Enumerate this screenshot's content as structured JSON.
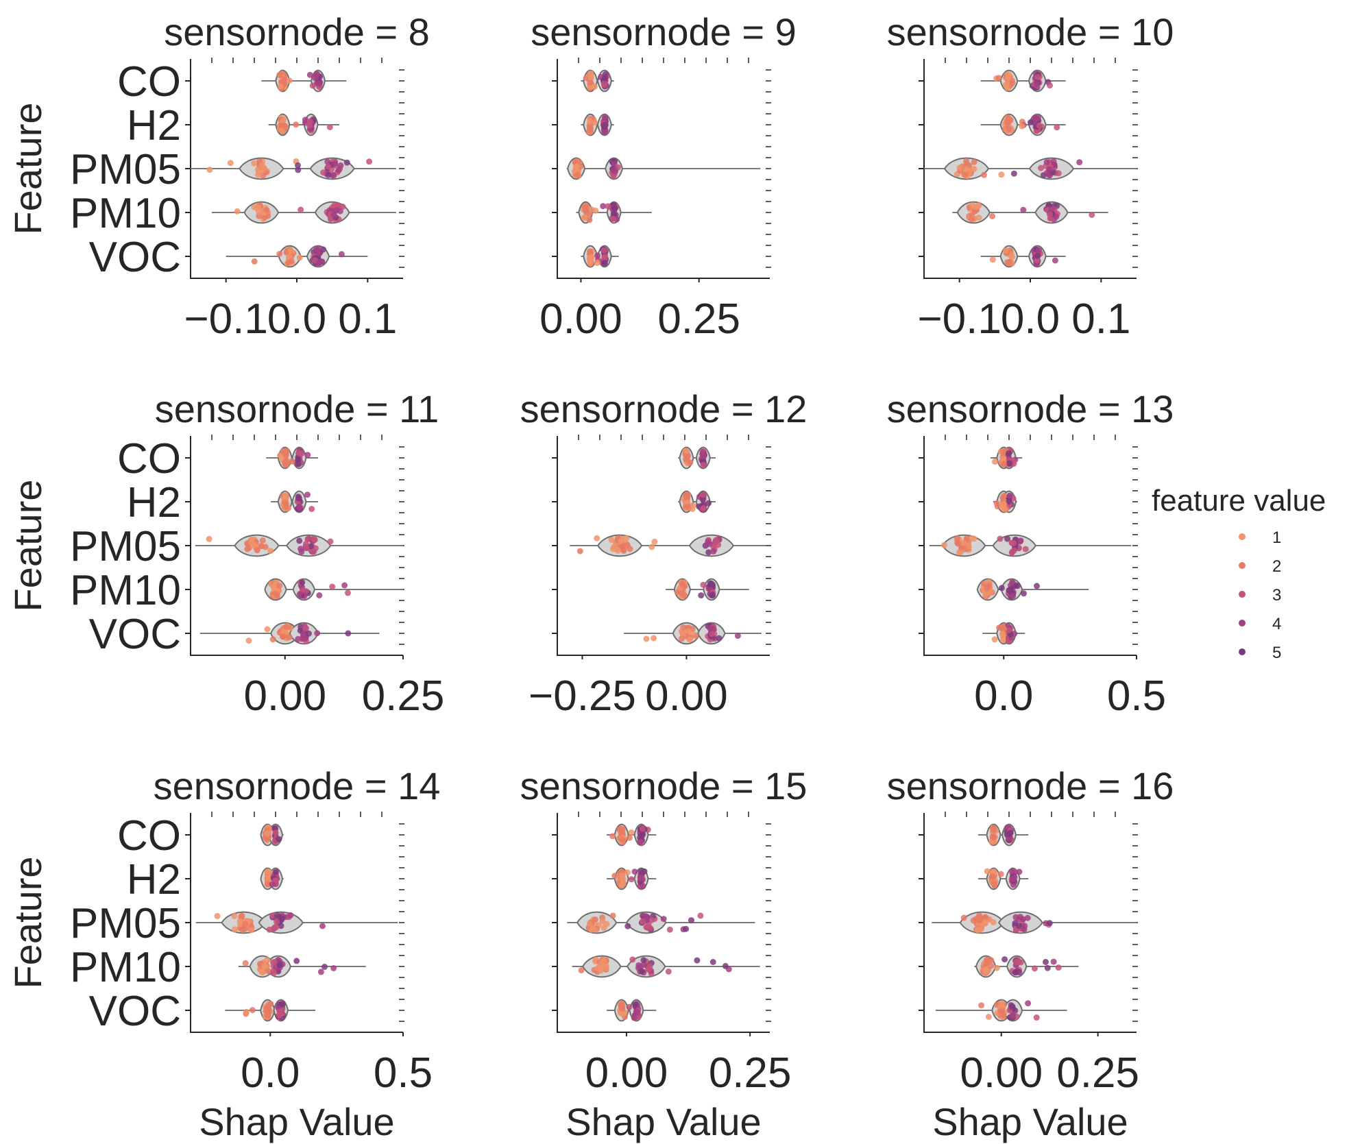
{
  "chart_data": {
    "type": "violin-strip",
    "facet_variable": "sensornode",
    "ylabel": "Feature",
    "xlabel": "Shap Value",
    "categories": [
      "CO",
      "H2",
      "PM05",
      "PM10",
      "VOC"
    ],
    "legend": {
      "title": "feature value",
      "placement": "right",
      "entries": [
        {
          "label": "1",
          "color": "#f0936a"
        },
        {
          "label": "2",
          "color": "#e67a64"
        },
        {
          "label": "3",
          "color": "#c4527a"
        },
        {
          "label": "4",
          "color": "#a43f83"
        },
        {
          "label": "5",
          "color": "#7c3a7c"
        }
      ]
    },
    "panels": [
      {
        "title": "sensornode = 8",
        "xlim": [
          -0.15,
          0.15
        ],
        "xticks": [
          {
            "v": -0.1,
            "t": "−0.1"
          },
          {
            "v": 0.0,
            "t": "0.0"
          },
          {
            "v": 0.1,
            "t": "0.1"
          }
        ],
        "features": [
          {
            "name": "CO",
            "lo": -0.05,
            "hi": 0.07,
            "bulk": [
              -0.03,
              0.05
            ],
            "modes": [
              -0.02,
              0.03
            ]
          },
          {
            "name": "H2",
            "lo": -0.04,
            "hi": 0.06,
            "bulk": [
              -0.03,
              0.05
            ],
            "modes": [
              -0.02,
              0.02
            ]
          },
          {
            "name": "PM05",
            "lo": -0.15,
            "hi": 0.14,
            "bulk": [
              -0.14,
              0.12
            ],
            "modes": [
              -0.05,
              0.05
            ]
          },
          {
            "name": "PM10",
            "lo": -0.12,
            "hi": 0.14,
            "bulk": [
              -0.1,
              0.1
            ],
            "modes": [
              -0.05,
              0.05
            ]
          },
          {
            "name": "VOC",
            "lo": -0.1,
            "hi": 0.1,
            "bulk": [
              -0.06,
              0.07
            ],
            "modes": [
              -0.01,
              0.03
            ]
          }
        ]
      },
      {
        "title": "sensornode = 9",
        "xlim": [
          -0.05,
          0.4
        ],
        "xticks": [
          {
            "v": 0.0,
            "t": "0.00"
          },
          {
            "v": 0.25,
            "t": "0.25"
          }
        ],
        "features": [
          {
            "name": "CO",
            "lo": 0.0,
            "hi": 0.07,
            "bulk": [
              0.01,
              0.06
            ],
            "modes": [
              0.02,
              0.05
            ]
          },
          {
            "name": "H2",
            "lo": 0.0,
            "hi": 0.07,
            "bulk": [
              0.01,
              0.06
            ],
            "modes": [
              0.02,
              0.05
            ]
          },
          {
            "name": "PM05",
            "lo": -0.03,
            "hi": 0.38,
            "bulk": [
              -0.03,
              0.12
            ],
            "modes": [
              -0.01,
              0.07
            ]
          },
          {
            "name": "PM10",
            "lo": -0.01,
            "hi": 0.15,
            "bulk": [
              0.0,
              0.11
            ],
            "modes": [
              0.01,
              0.07
            ]
          },
          {
            "name": "VOC",
            "lo": 0.0,
            "hi": 0.08,
            "bulk": [
              0.01,
              0.07
            ],
            "modes": [
              0.02,
              0.05
            ]
          }
        ]
      },
      {
        "title": "sensornode = 10",
        "xlim": [
          -0.15,
          0.15
        ],
        "xticks": [
          {
            "v": -0.1,
            "t": "−0.1"
          },
          {
            "v": 0.0,
            "t": "0.0"
          },
          {
            "v": 0.1,
            "t": "0.1"
          }
        ],
        "features": [
          {
            "name": "CO",
            "lo": -0.07,
            "hi": 0.05,
            "bulk": [
              -0.06,
              0.04
            ],
            "modes": [
              -0.03,
              0.01
            ]
          },
          {
            "name": "H2",
            "lo": -0.07,
            "hi": 0.05,
            "bulk": [
              -0.06,
              0.04
            ],
            "modes": [
              -0.03,
              0.01
            ]
          },
          {
            "name": "PM05",
            "lo": -0.15,
            "hi": 0.15,
            "bulk": [
              -0.14,
              0.12
            ],
            "modes": [
              -0.09,
              0.03
            ]
          },
          {
            "name": "PM10",
            "lo": -0.11,
            "hi": 0.11,
            "bulk": [
              -0.1,
              0.09
            ],
            "modes": [
              -0.08,
              0.03
            ]
          },
          {
            "name": "VOC",
            "lo": -0.07,
            "hi": 0.05,
            "bulk": [
              -0.06,
              0.04
            ],
            "modes": [
              -0.03,
              0.01
            ]
          }
        ]
      },
      {
        "title": "sensornode = 11",
        "xlim": [
          -0.2,
          0.25
        ],
        "xticks": [
          {
            "v": 0.0,
            "t": "0.00"
          },
          {
            "v": 0.25,
            "t": "0.25"
          }
        ],
        "features": [
          {
            "name": "CO",
            "lo": -0.04,
            "hi": 0.07,
            "bulk": [
              -0.03,
              0.06
            ],
            "modes": [
              0.0,
              0.03
            ]
          },
          {
            "name": "H2",
            "lo": -0.03,
            "hi": 0.07,
            "bulk": [
              -0.02,
              0.06
            ],
            "modes": [
              0.0,
              0.03
            ]
          },
          {
            "name": "PM05",
            "lo": -0.19,
            "hi": 0.25,
            "bulk": [
              -0.19,
              0.2
            ],
            "modes": [
              -0.06,
              0.05
            ]
          },
          {
            "name": "PM10",
            "lo": -0.04,
            "hi": 0.25,
            "bulk": [
              -0.03,
              0.16
            ],
            "modes": [
              -0.02,
              0.04
            ]
          },
          {
            "name": "VOC",
            "lo": -0.18,
            "hi": 0.2,
            "bulk": [
              -0.1,
              0.15
            ],
            "modes": [
              0.0,
              0.04
            ]
          }
        ]
      },
      {
        "title": "sensornode = 12",
        "xlim": [
          -0.31,
          0.2
        ],
        "xticks": [
          {
            "v": -0.25,
            "t": "−0.25"
          },
          {
            "v": 0.0,
            "t": "0.00"
          }
        ],
        "features": [
          {
            "name": "CO",
            "lo": -0.02,
            "hi": 0.07,
            "bulk": [
              -0.01,
              0.06
            ],
            "modes": [
              0.0,
              0.04
            ]
          },
          {
            "name": "H2",
            "lo": -0.02,
            "hi": 0.07,
            "bulk": [
              -0.01,
              0.06
            ],
            "modes": [
              0.0,
              0.04
            ]
          },
          {
            "name": "PM05",
            "lo": -0.28,
            "hi": 0.19,
            "bulk": [
              -0.27,
              0.18
            ],
            "modes": [
              -0.16,
              0.06
            ]
          },
          {
            "name": "PM10",
            "lo": -0.05,
            "hi": 0.15,
            "bulk": [
              -0.04,
              0.12
            ],
            "modes": [
              -0.01,
              0.06
            ]
          },
          {
            "name": "VOC",
            "lo": -0.15,
            "hi": 0.18,
            "bulk": [
              -0.12,
              0.15
            ],
            "modes": [
              0.0,
              0.06
            ]
          }
        ]
      },
      {
        "title": "sensornode = 13",
        "xlim": [
          -0.3,
          0.5
        ],
        "xticks": [
          {
            "v": 0.0,
            "t": "0.0"
          },
          {
            "v": 0.5,
            "t": "0.5"
          }
        ],
        "features": [
          {
            "name": "CO",
            "lo": -0.05,
            "hi": 0.07,
            "bulk": [
              -0.04,
              0.05
            ],
            "modes": [
              0.0,
              0.02
            ]
          },
          {
            "name": "H2",
            "lo": -0.04,
            "hi": 0.05,
            "bulk": [
              -0.03,
              0.04
            ],
            "modes": [
              0.0,
              0.02
            ]
          },
          {
            "name": "PM05",
            "lo": -0.28,
            "hi": 0.48,
            "bulk": [
              -0.27,
              0.4
            ],
            "modes": [
              -0.15,
              0.04
            ]
          },
          {
            "name": "PM10",
            "lo": -0.1,
            "hi": 0.32,
            "bulk": [
              -0.08,
              0.25
            ],
            "modes": [
              -0.06,
              0.03
            ]
          },
          {
            "name": "VOC",
            "lo": -0.08,
            "hi": 0.08,
            "bulk": [
              -0.06,
              0.06
            ],
            "modes": [
              0.0,
              0.02
            ]
          }
        ]
      },
      {
        "title": "sensornode = 14",
        "xlim": [
          -0.3,
          0.5
        ],
        "xticks": [
          {
            "v": 0.0,
            "t": "0.0"
          },
          {
            "v": 0.5,
            "t": "0.5"
          }
        ],
        "features": [
          {
            "name": "CO",
            "lo": -0.03,
            "hi": 0.05,
            "bulk": [
              -0.02,
              0.04
            ],
            "modes": [
              -0.01,
              0.02
            ]
          },
          {
            "name": "H2",
            "lo": -0.02,
            "hi": 0.05,
            "bulk": [
              -0.01,
              0.04
            ],
            "modes": [
              -0.01,
              0.02
            ]
          },
          {
            "name": "PM05",
            "lo": -0.28,
            "hi": 0.48,
            "bulk": [
              -0.27,
              0.43
            ],
            "modes": [
              -0.1,
              0.04
            ]
          },
          {
            "name": "PM10",
            "lo": -0.12,
            "hi": 0.36,
            "bulk": [
              -0.11,
              0.28
            ],
            "modes": [
              -0.03,
              0.03
            ]
          },
          {
            "name": "VOC",
            "lo": -0.17,
            "hi": 0.17,
            "bulk": [
              -0.1,
              0.12
            ],
            "modes": [
              -0.01,
              0.04
            ]
          }
        ]
      },
      {
        "title": "sensornode = 15",
        "xlim": [
          -0.14,
          0.29
        ],
        "xticks": [
          {
            "v": 0.0,
            "t": "0.00"
          },
          {
            "v": 0.25,
            "t": "0.25"
          }
        ],
        "features": [
          {
            "name": "CO",
            "lo": -0.04,
            "hi": 0.06,
            "bulk": [
              -0.03,
              0.05
            ],
            "modes": [
              -0.01,
              0.03
            ]
          },
          {
            "name": "H2",
            "lo": -0.04,
            "hi": 0.06,
            "bulk": [
              -0.03,
              0.05
            ],
            "modes": [
              -0.01,
              0.03
            ]
          },
          {
            "name": "PM05",
            "lo": -0.12,
            "hi": 0.26,
            "bulk": [
              -0.11,
              0.22
            ],
            "modes": [
              -0.06,
              0.04
            ]
          },
          {
            "name": "PM10",
            "lo": -0.11,
            "hi": 0.27,
            "bulk": [
              -0.1,
              0.22
            ],
            "modes": [
              -0.05,
              0.04
            ]
          },
          {
            "name": "VOC",
            "lo": -0.04,
            "hi": 0.06,
            "bulk": [
              -0.03,
              0.05
            ],
            "modes": [
              -0.01,
              0.02
            ]
          }
        ]
      },
      {
        "title": "sensornode = 16",
        "xlim": [
          -0.2,
          0.35
        ],
        "xticks": [
          {
            "v": 0.0,
            "t": "0.00"
          },
          {
            "v": 0.25,
            "t": "0.25"
          }
        ],
        "features": [
          {
            "name": "CO",
            "lo": -0.06,
            "hi": 0.07,
            "bulk": [
              -0.05,
              0.06
            ],
            "modes": [
              -0.02,
              0.02
            ]
          },
          {
            "name": "H2",
            "lo": -0.06,
            "hi": 0.07,
            "bulk": [
              -0.05,
              0.06
            ],
            "modes": [
              -0.02,
              0.03
            ]
          },
          {
            "name": "PM05",
            "lo": -0.18,
            "hi": 0.35,
            "bulk": [
              -0.17,
              0.3
            ],
            "modes": [
              -0.05,
              0.05
            ]
          },
          {
            "name": "PM10",
            "lo": -0.07,
            "hi": 0.2,
            "bulk": [
              -0.06,
              0.15
            ],
            "modes": [
              -0.04,
              0.04
            ]
          },
          {
            "name": "VOC",
            "lo": -0.17,
            "hi": 0.17,
            "bulk": [
              -0.1,
              0.1
            ],
            "modes": [
              0.0,
              0.03
            ]
          }
        ]
      }
    ]
  }
}
